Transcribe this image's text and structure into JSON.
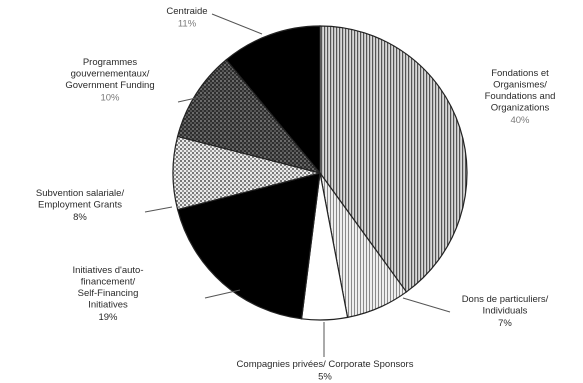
{
  "chart_data": {
    "type": "pie",
    "title": "",
    "start_angle_deg": 0,
    "direction": "clockwise",
    "slices": [
      {
        "lines": [
          "Fondations et",
          "Organismes/",
          "Foundations and",
          "Organizations"
        ],
        "pct_label": "40%",
        "value": 40,
        "pattern": "vertical-lines"
      },
      {
        "lines": [
          "Dons de particuliers/",
          "Individuals"
        ],
        "pct_label": "7%",
        "value": 7,
        "pattern": "light-vertical"
      },
      {
        "lines": [
          "Compagnies privées/ Corporate Sponsors"
        ],
        "pct_label": "5%",
        "value": 5,
        "pattern": "white"
      },
      {
        "lines": [
          "Initiatives d'auto-",
          "financement/",
          "Self-Financing",
          "Initiatives"
        ],
        "pct_label": "19%",
        "value": 19,
        "pattern": "black"
      },
      {
        "lines": [
          "Subvention salariale/",
          "Employment Grants"
        ],
        "pct_label": "8%",
        "value": 8,
        "pattern": "light-dots"
      },
      {
        "lines": [
          "Programmes",
          "gouvernementaux/",
          "Government Funding"
        ],
        "pct_label": "10%",
        "value": 10,
        "pattern": "dark-checker"
      },
      {
        "lines": [
          "Centraide"
        ],
        "pct_label": "11%",
        "value": 11,
        "pattern": "black"
      }
    ]
  },
  "colors": {
    "outline": "#222222",
    "text": "#2a2a2a",
    "pct_text": "#7a7a7a"
  }
}
